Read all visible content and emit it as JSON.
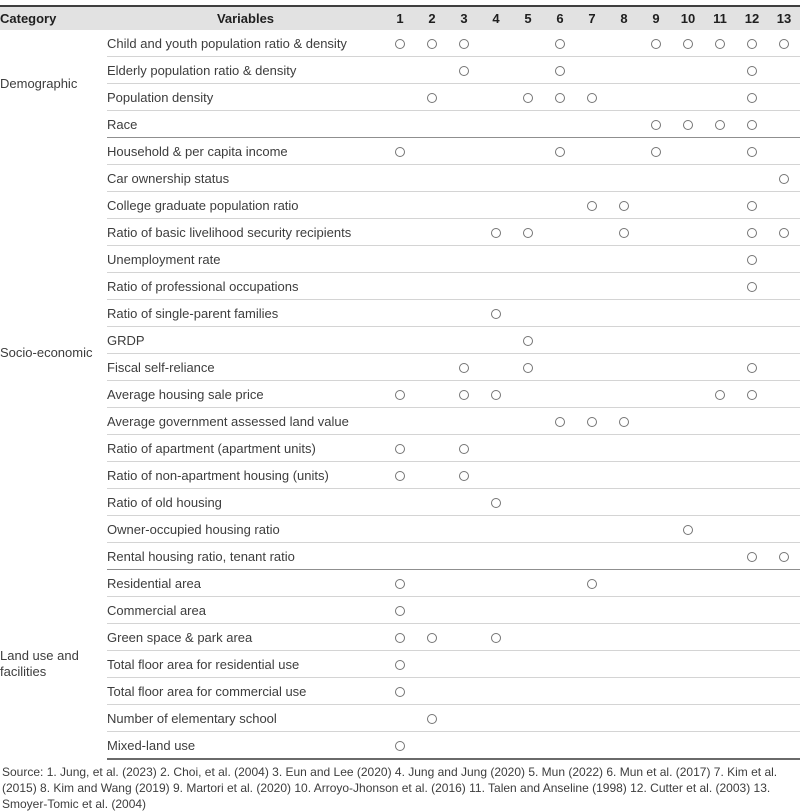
{
  "table": {
    "headers": {
      "category": "Category",
      "variables": "Variables",
      "studies": [
        "1",
        "2",
        "3",
        "4",
        "5",
        "6",
        "7",
        "8",
        "9",
        "10",
        "11",
        "12",
        "13"
      ]
    },
    "groups": [
      {
        "category": "Demographic",
        "rows": [
          {
            "variable": "Child and youth population ratio & density",
            "marks": [
              1,
              2,
              3,
              6,
              9,
              10,
              11,
              12,
              13
            ]
          },
          {
            "variable": "Elderly population ratio & density",
            "marks": [
              3,
              6,
              12
            ]
          },
          {
            "variable": "Population density",
            "marks": [
              2,
              5,
              6,
              7,
              12
            ]
          },
          {
            "variable": "Race",
            "marks": [
              9,
              10,
              11,
              12
            ]
          }
        ]
      },
      {
        "category": "Socio-economic",
        "rows": [
          {
            "variable": "Household & per capita income",
            "marks": [
              1,
              6,
              9,
              12
            ]
          },
          {
            "variable": "Car ownership status",
            "marks": [
              13
            ]
          },
          {
            "variable": "College graduate population ratio",
            "marks": [
              7,
              8,
              12
            ]
          },
          {
            "variable": "Ratio of basic livelihood security recipients",
            "marks": [
              4,
              5,
              8,
              12,
              13
            ]
          },
          {
            "variable": "Unemployment rate",
            "marks": [
              12
            ]
          },
          {
            "variable": "Ratio of professional occupations",
            "marks": [
              12
            ]
          },
          {
            "variable": "Ratio of single-parent families",
            "marks": [
              4
            ]
          },
          {
            "variable": "GRDP",
            "marks": [
              5
            ]
          },
          {
            "variable": "Fiscal self-reliance",
            "marks": [
              3,
              5,
              12
            ]
          },
          {
            "variable": "Average housing sale price",
            "marks": [
              1,
              3,
              4,
              11,
              12
            ]
          },
          {
            "variable": "Average government assessed land value",
            "marks": [
              6,
              7,
              8
            ]
          },
          {
            "variable": "Ratio of apartment (apartment units)",
            "marks": [
              1,
              3
            ]
          },
          {
            "variable": "Ratio of non-apartment housing (units)",
            "marks": [
              1,
              3
            ]
          },
          {
            "variable": "Ratio of old housing",
            "marks": [
              4
            ]
          },
          {
            "variable": "Owner-occupied housing ratio",
            "marks": [
              10
            ]
          },
          {
            "variable": "Rental housing ratio, tenant ratio",
            "marks": [
              12,
              13
            ]
          }
        ]
      },
      {
        "category": "Land use and facilities",
        "rows": [
          {
            "variable": "Residential area",
            "marks": [
              1,
              7
            ]
          },
          {
            "variable": "Commercial area",
            "marks": [
              1
            ]
          },
          {
            "variable": "Green space & park area",
            "marks": [
              1,
              2,
              4
            ]
          },
          {
            "variable": "Total floor area for residential use",
            "marks": [
              1
            ]
          },
          {
            "variable": "Total floor area for commercial use",
            "marks": [
              1
            ]
          },
          {
            "variable": "Number of elementary school",
            "marks": [
              2
            ]
          },
          {
            "variable": "Mixed-land use",
            "marks": [
              1
            ]
          }
        ]
      }
    ],
    "mark_symbol": "circle-outline"
  },
  "footer": {
    "source": "Source: 1. Jung, et al. (2023) 2. Choi, et al. (2004) 3. Eun and Lee (2020) 4. Jung and Jung (2020) 5. Mun (2022) 6. Mun et al. (2017) 7. Kim et al. (2015) 8. Kim and Wang (2019) 9. Martori et al. (2020) 10. Arroyo-Jhonson et al. (2016) 11. Talen and Anseline (1998) 12. Cutter et al. (2003) 13. Smoyer-Tomic et al. (2004)"
  },
  "colors": {
    "header_background": "#e2e2e2",
    "top_border": "#3f3f3f",
    "group_border": "#8f8f8f",
    "row_border": "#d4d4d4",
    "circle_outline": "#757575",
    "text": "#3d3d3d"
  }
}
